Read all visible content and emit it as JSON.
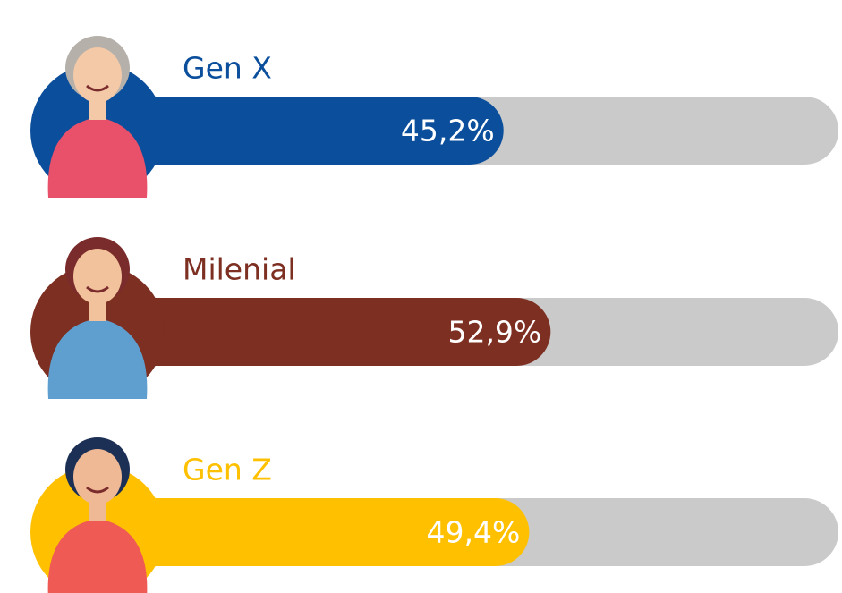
{
  "chart_data": {
    "type": "bar",
    "orientation": "horizontal",
    "categories": [
      "Gen X",
      "Milenial",
      "Gen Z"
    ],
    "values": [
      45.2,
      52.9,
      49.4
    ],
    "value_labels": [
      "45,2%",
      "52,9%",
      "49,4%"
    ],
    "colors": [
      "#0b4f9c",
      "#7d2f21",
      "#ffc000"
    ],
    "track_color": "#cacaca",
    "xlim": [
      0,
      100
    ]
  }
}
